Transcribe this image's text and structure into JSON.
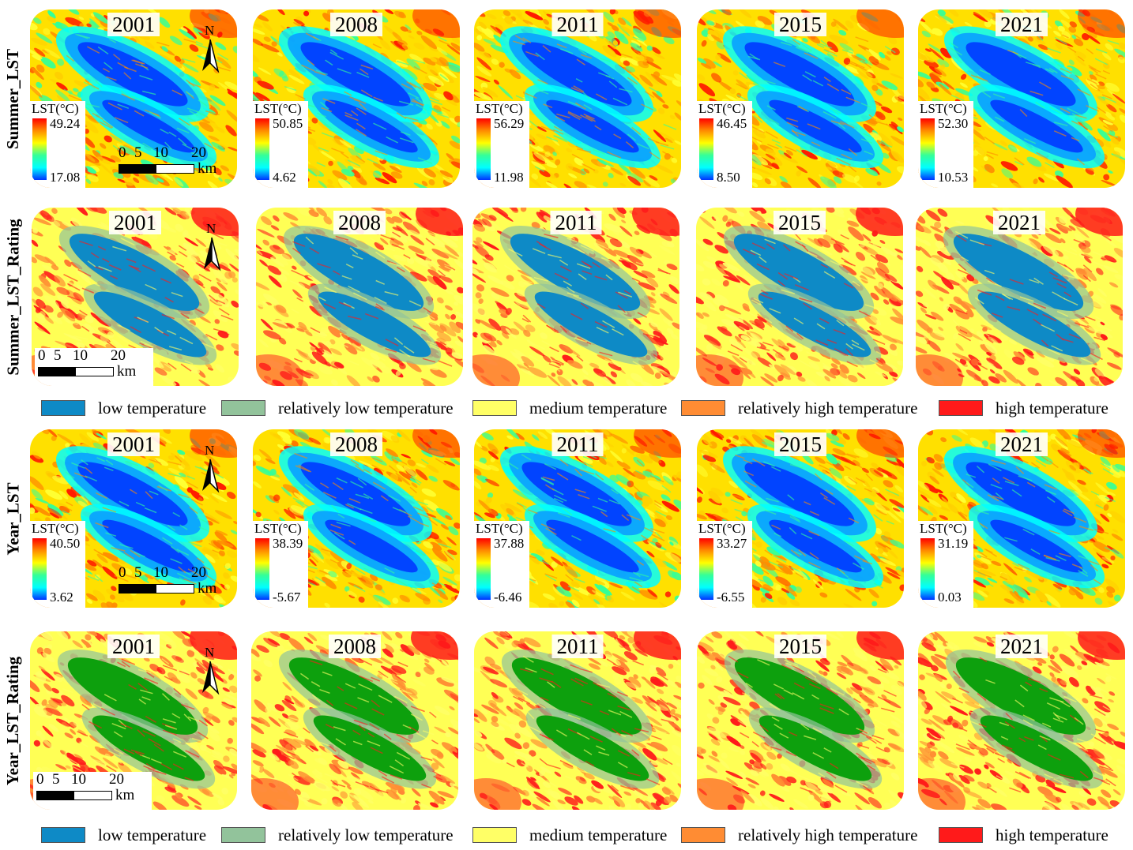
{
  "rows": [
    {
      "label": "Summer_LST",
      "type": "continuous",
      "panels": [
        {
          "year": "2001",
          "cbar_title": "LST(°C)",
          "max": "49.24",
          "min": "17.08"
        },
        {
          "year": "2008",
          "cbar_title": "LST(°C)",
          "max": "50.85",
          "min": "4.62"
        },
        {
          "year": "2011",
          "cbar_title": "LST(°C)",
          "max": "56.29",
          "min": "11.98"
        },
        {
          "year": "2015",
          "cbar_title": "LST(°C)",
          "max": "46.45",
          "min": "8.50"
        },
        {
          "year": "2021",
          "cbar_title": "LST(°C)",
          "max": "52.30",
          "min": "10.53"
        }
      ]
    },
    {
      "label": "Summer_LST_Rating",
      "type": "rating",
      "low_class_color": "#0e8ac6",
      "panels": [
        {
          "year": "2001"
        },
        {
          "year": "2008"
        },
        {
          "year": "2011"
        },
        {
          "year": "2015"
        },
        {
          "year": "2021"
        }
      ]
    },
    {
      "label": "Year_LST",
      "type": "continuous",
      "panels": [
        {
          "year": "2001",
          "cbar_title": "LST(°C)",
          "max": "40.50",
          "min": "3.62"
        },
        {
          "year": "2008",
          "cbar_title": "LST(°C)",
          "max": "38.39",
          "min": "-5.67"
        },
        {
          "year": "2011",
          "cbar_title": "LST(°C)",
          "max": "37.88",
          "min": "-6.46"
        },
        {
          "year": "2015",
          "cbar_title": "LST(°C)",
          "max": "33.27",
          "min": "-6.55"
        },
        {
          "year": "2021",
          "cbar_title": "LST(°C)",
          "max": "31.19",
          "min": "0.03"
        }
      ]
    },
    {
      "label": "Year_LST_Rating",
      "type": "rating",
      "low_class_color": "#0da00d",
      "panels": [
        {
          "year": "2001"
        },
        {
          "year": "2008"
        },
        {
          "year": "2011"
        },
        {
          "year": "2015"
        },
        {
          "year": "2021"
        }
      ]
    }
  ],
  "map_furniture": {
    "north_label": "N",
    "scale_ticks": [
      "0",
      "5",
      "10",
      "20"
    ],
    "scale_unit": "km"
  },
  "legend": [
    {
      "label": "low temperature",
      "color": "#0e8ac6"
    },
    {
      "label": "relatively low temperature",
      "color": "#92c39b"
    },
    {
      "label": "medium temperature",
      "color": "#ffff66"
    },
    {
      "label": "relatively high temperature",
      "color": "#ff8c33"
    },
    {
      "label": "high temperature",
      "color": "#ff1a1a"
    }
  ],
  "palette": {
    "continuous": [
      "#ff1a00",
      "#ff8c00",
      "#ffd000",
      "#ffff33",
      "#33ff99",
      "#00ffff",
      "#0aa0ff",
      "#0033ff"
    ],
    "rating": [
      "#ff1a1a",
      "#ff8c33",
      "#ffff66",
      "#92c39b"
    ]
  }
}
